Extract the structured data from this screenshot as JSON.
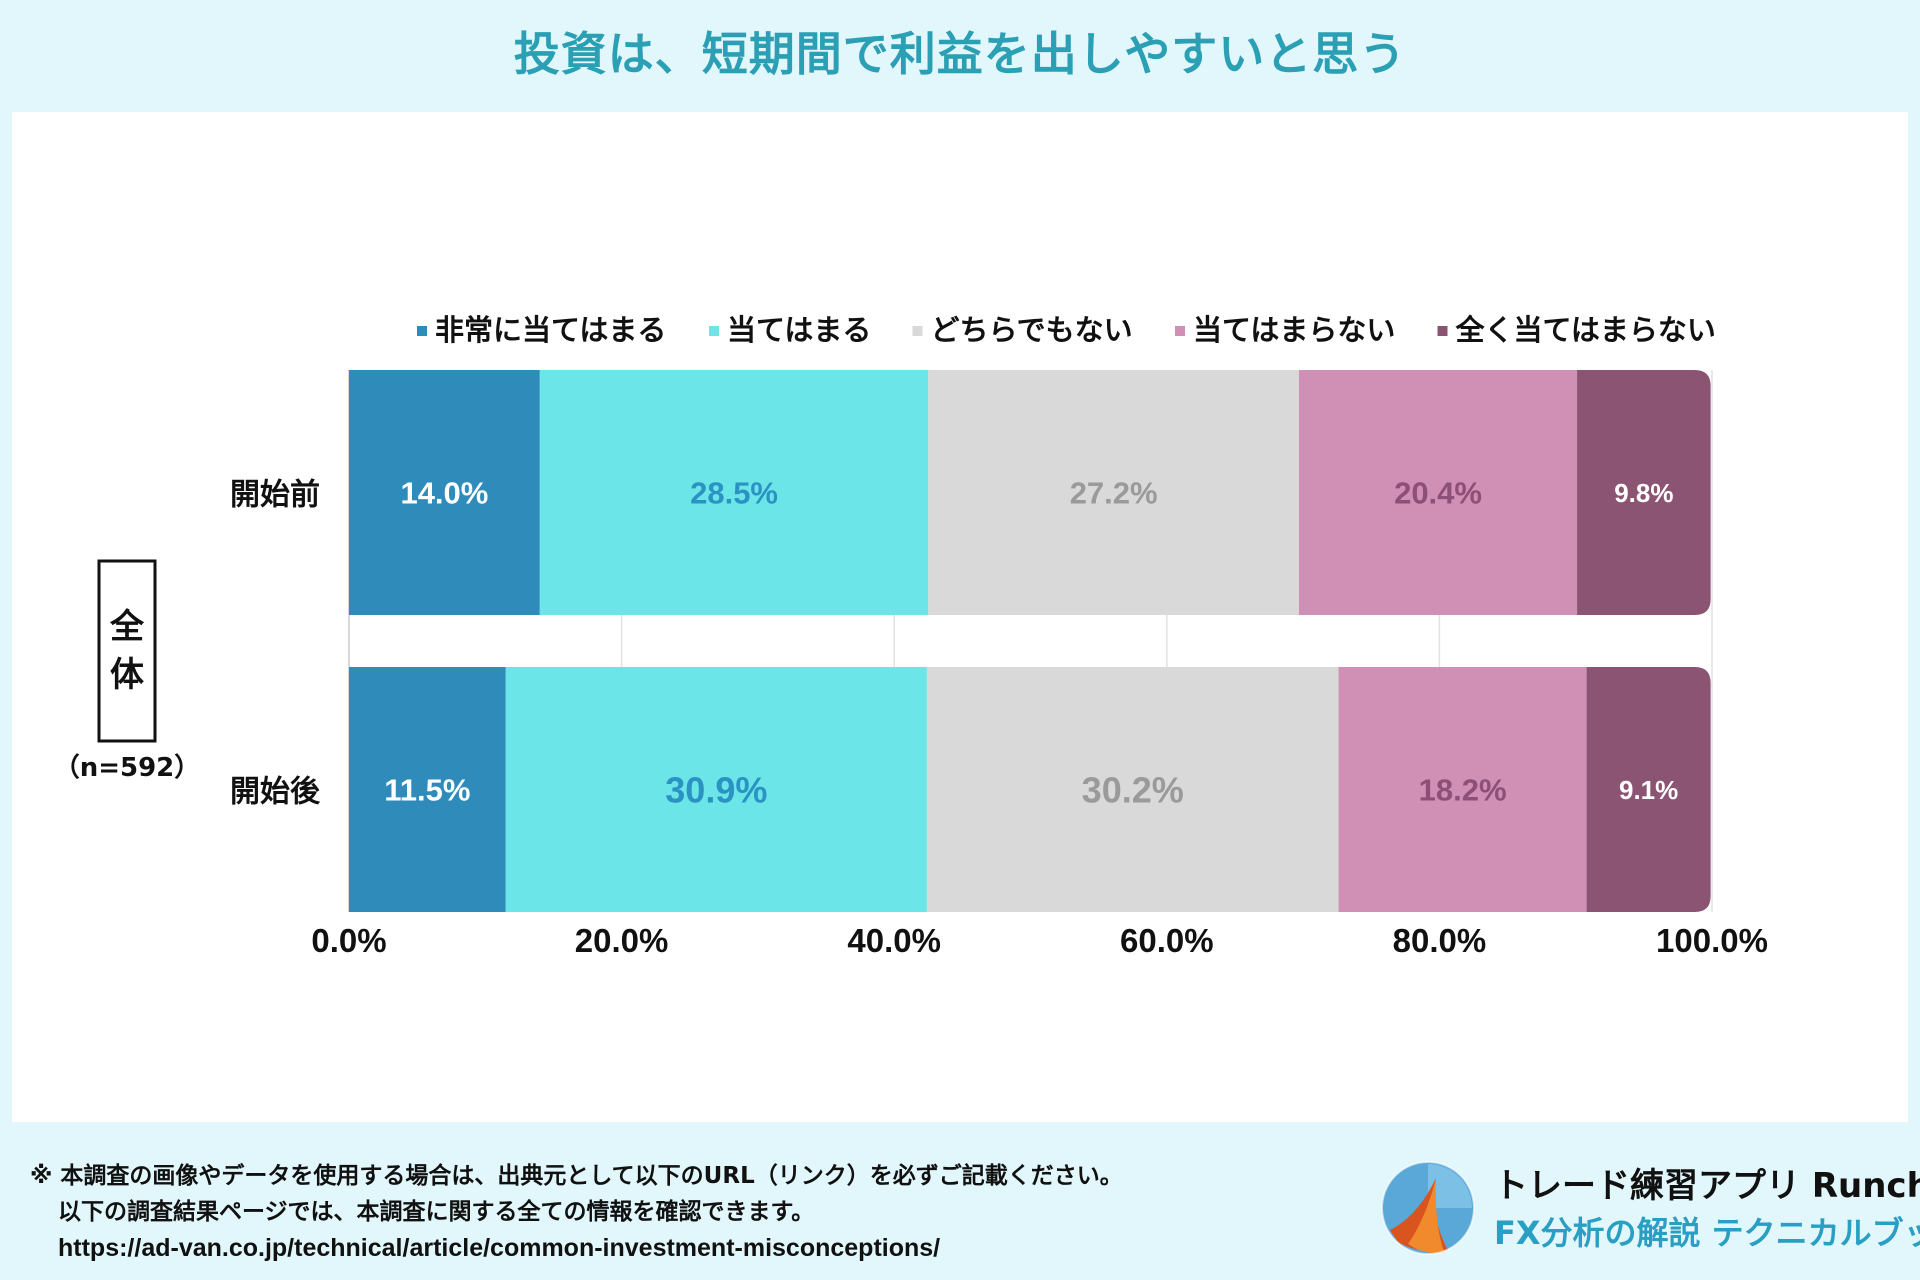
{
  "header": {
    "title": "投資は、短期間で利益を出しやすいと思う"
  },
  "chart_data": {
    "type": "bar",
    "orientation": "horizontal-stacked-100",
    "title": "投資は、短期間で利益を出しやすいと思う",
    "group_label": "全体",
    "sample_size": "（n=592）",
    "categories": [
      "開始前",
      "開始後"
    ],
    "series": [
      {
        "name": "非常に当てはまる",
        "color": "#2e8bba",
        "label_color": "#ffffff",
        "values": [
          14.0,
          11.5
        ],
        "labels": [
          "14.0%",
          "11.5%"
        ]
      },
      {
        "name": "当てはまる",
        "color": "#6ce5e8",
        "label_color": "#2b93c4",
        "values": [
          28.5,
          30.9
        ],
        "labels": [
          "28.5%",
          "30.9%"
        ]
      },
      {
        "name": "どちらでもない",
        "color": "#d9d9d9",
        "label_color": "#9a9a9a",
        "values": [
          27.2,
          30.2
        ],
        "labels": [
          "27.2%",
          "30.2%"
        ]
      },
      {
        "name": "当てはまらない",
        "color": "#d08fb4",
        "label_color": "#8b4f78",
        "values": [
          20.4,
          18.2
        ],
        "labels": [
          "20.4%",
          "18.2%"
        ]
      },
      {
        "name": "全く当てはまらない",
        "color": "#8a5472",
        "label_color": "#ffffff",
        "values": [
          9.8,
          9.1
        ],
        "labels": [
          "9.8%",
          "9.1%"
        ]
      }
    ],
    "xlim": [
      0,
      100
    ],
    "x_ticks": [
      0,
      20,
      40,
      60,
      80,
      100
    ],
    "x_tick_labels": [
      "0.0%",
      "20.0%",
      "40.0%",
      "60.0%",
      "80.0%",
      "100.0%"
    ],
    "legend_position": "top",
    "grid": true
  },
  "footer": {
    "note_line1": "※ 本調査の画像やデータを使用する場合は、出典元として以下のURL（リンク）を必ずご記載ください。",
    "note_line2": "以下の調査結果ページでは、本調査に関する全ての情報を確認できます。",
    "url": "https://ad-van.co.jp/technical/article/common-investment-misconceptions/"
  },
  "brand": {
    "name": "トレード練習アプリ  Runcha",
    "subtitle": "FX分析の解説  テクニカルブック",
    "logo": "runcha-logo-icon"
  }
}
